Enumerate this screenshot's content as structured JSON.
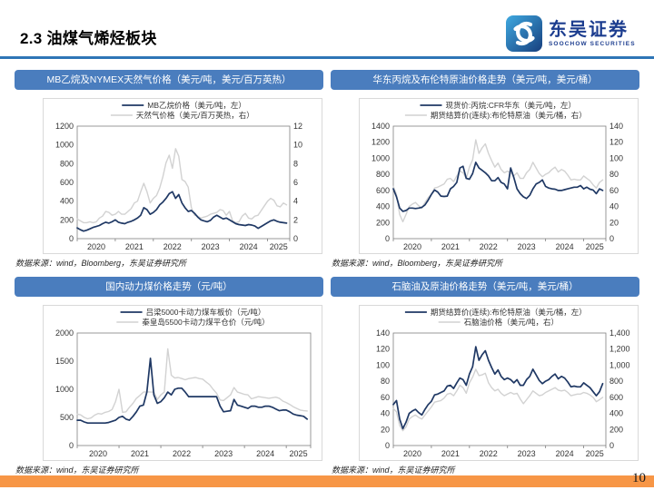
{
  "page": {
    "title": "2.3 油煤气烯烃板块",
    "page_number": "10",
    "logo": {
      "cn": "东吴证券",
      "en": "SOOCHOW SECURITIES"
    }
  },
  "colors": {
    "header_bar": "#4A7DBE",
    "title_rule": "#2E75B6",
    "footer_bar": "#F79646",
    "navy_line": "#1F3864",
    "gray_line": "#D2D2D2",
    "logo_navy": "#1C3D8F"
  },
  "panels": [
    {
      "header": "MB乙烷及NYMEX天然气价格（美元/吨，美元/百万英热）",
      "source": "数据来源：wind，Bloomberg，东吴证券研究所"
    },
    {
      "header": "华东丙烷及布伦特原油价格走势（美元/吨，美元/桶）",
      "source": "数据来源：wind，Bloomberg，东吴证券研究所"
    },
    {
      "header": "国内动力煤价格走势（元/吨）",
      "source": "数据来源：wind，东吴证券研究所"
    },
    {
      "header": "石脑油及原油价格走势（美元/吨，美元/桶）",
      "source": "数据来源：wind，东吴证券研究所"
    }
  ],
  "chart_data": [
    {
      "type": "line",
      "title": "MB乙烷及NYMEX天然气价格（美元/吨，美元/百万英热）",
      "x_start_year": 2020,
      "x_resolution": "monthly",
      "x_tick_labels": [
        "2020",
        "2021",
        "2022",
        "2023",
        "2024",
        "2025"
      ],
      "legend_position": "top-center",
      "grid": false,
      "axes": {
        "left": {
          "min": 0,
          "max": 1200,
          "step": 200,
          "comma": false
        },
        "right": {
          "min": 0,
          "max": 12,
          "step": 2,
          "comma": false
        }
      },
      "series": [
        {
          "name": "MB乙烷价格（美元/吨，左）",
          "axis": "left",
          "color": "#1F3864",
          "width": 1.7,
          "values": [
            115,
            95,
            80,
            90,
            105,
            120,
            130,
            140,
            160,
            175,
            165,
            180,
            200,
            175,
            165,
            160,
            175,
            185,
            200,
            220,
            250,
            330,
            310,
            260,
            280,
            310,
            360,
            390,
            430,
            480,
            500,
            430,
            470,
            380,
            330,
            290,
            300,
            270,
            230,
            200,
            190,
            180,
            195,
            230,
            250,
            230,
            210,
            220,
            200,
            180,
            160,
            150,
            145,
            140,
            150,
            145,
            135,
            110,
            130,
            150,
            170,
            190,
            200,
            185,
            175,
            170,
            165
          ]
        },
        {
          "name": "天然气价格（美元/百万英热，右）",
          "axis": "right",
          "color": "#D2D2D2",
          "width": 1.4,
          "values": [
            2.1,
            1.9,
            1.7,
            1.7,
            1.8,
            1.7,
            1.8,
            2.2,
            2.4,
            2.9,
            2.8,
            2.5,
            2.6,
            2.9,
            2.6,
            2.6,
            2.9,
            3.2,
            3.8,
            4.0,
            5.0,
            5.9,
            5.0,
            3.8,
            4.3,
            4.6,
            5.4,
            6.6,
            8.1,
            8.9,
            7.5,
            9.6,
            8.8,
            6.3,
            6.1,
            5.5,
            3.3,
            2.5,
            2.4,
            2.2,
            2.3,
            2.4,
            2.6,
            2.7,
            2.8,
            3.1,
            3.0,
            2.5,
            2.9,
            1.9,
            1.7,
            1.8,
            2.4,
            2.7,
            2.2,
            2.1,
            2.4,
            2.5,
            3.0,
            3.5,
            4.0,
            4.3,
            4.1,
            3.5,
            3.4,
            3.8,
            3.6
          ]
        }
      ]
    },
    {
      "type": "line",
      "title": "华东丙烷及布伦特原油价格走势（美元/吨，美元/桶）",
      "x_start_year": 2020,
      "x_resolution": "monthly",
      "x_tick_labels": [
        "2020",
        "2021",
        "2022",
        "2023",
        "2024",
        "2025"
      ],
      "legend_position": "top-center",
      "grid": false,
      "axes": {
        "left": {
          "min": 0,
          "max": 1400,
          "step": 200,
          "comma": false
        },
        "right": {
          "min": 0,
          "max": 140,
          "step": 20,
          "comma": false
        }
      },
      "series": [
        {
          "name": "现货价:丙烷:CFR华东（美元/吨，左）",
          "axis": "left",
          "color": "#1F3864",
          "width": 1.7,
          "values": [
            620,
            520,
            380,
            340,
            350,
            380,
            380,
            375,
            380,
            390,
            420,
            480,
            550,
            605,
            580,
            530,
            525,
            530,
            620,
            650,
            700,
            880,
            900,
            750,
            740,
            810,
            950,
            880,
            850,
            820,
            780,
            720,
            720,
            760,
            700,
            680,
            620,
            880,
            760,
            620,
            560,
            520,
            500,
            540,
            620,
            680,
            700,
            730,
            650,
            630,
            620,
            615,
            600,
            600,
            610,
            620,
            630,
            640,
            640,
            660,
            620,
            640,
            615,
            605,
            560,
            620,
            600
          ]
        },
        {
          "name": "期货结算价(连续):布伦特原油（美元/桶，右）",
          "axis": "right",
          "color": "#D2D2D2",
          "width": 1.4,
          "values": [
            65,
            55,
            30,
            21,
            30,
            40,
            43,
            45,
            41,
            38,
            45,
            51,
            55,
            63,
            64,
            66,
            68,
            74,
            75,
            71,
            78,
            84,
            82,
            75,
            89,
            98,
            123,
            106,
            113,
            118,
            106,
            97,
            89,
            94,
            86,
            82,
            84,
            82,
            78,
            82,
            75,
            75,
            82,
            86,
            95,
            88,
            81,
            77,
            80,
            82,
            86,
            89,
            83,
            86,
            84,
            79,
            73,
            74,
            73,
            73,
            78,
            75,
            72,
            67,
            63,
            70,
            73
          ]
        }
      ]
    },
    {
      "type": "line",
      "title": "国内动力煤价格走势（元/吨）",
      "x_start_year": 2020,
      "x_resolution": "monthly",
      "x_tick_labels": [
        "2020",
        "2021",
        "2022",
        "2023",
        "2024",
        "2025"
      ],
      "legend_position": "top-center",
      "grid": false,
      "axes": {
        "left": {
          "min": 0,
          "max": 2000,
          "step": 500,
          "comma": false
        },
        "right": null
      },
      "series": [
        {
          "name": "吕梁5000卡动力煤车板价（元/吨）",
          "axis": "left",
          "color": "#1F3864",
          "width": 1.7,
          "values": [
            450,
            450,
            420,
            400,
            400,
            400,
            400,
            400,
            400,
            410,
            430,
            450,
            500,
            520,
            470,
            450,
            520,
            600,
            700,
            720,
            950,
            1550,
            900,
            750,
            780,
            850,
            950,
            900,
            1000,
            1020,
            1020,
            950,
            870,
            870,
            870,
            870,
            870,
            870,
            870,
            870,
            870,
            700,
            600,
            610,
            620,
            820,
            720,
            700,
            680,
            660,
            700,
            700,
            680,
            680,
            700,
            700,
            680,
            650,
            620,
            630,
            630,
            600,
            560,
            540,
            530,
            520,
            470
          ]
        },
        {
          "name": "秦皇岛5500卡动力煤平仓价（元/吨）",
          "axis": "left",
          "color": "#D2D2D2",
          "width": 1.4,
          "values": [
            560,
            545,
            500,
            475,
            490,
            540,
            570,
            560,
            590,
            605,
            640,
            780,
            1000,
            590,
            600,
            680,
            750,
            840,
            890,
            950,
            955,
            950,
            950,
            820,
            900,
            950,
            1720,
            1250,
            1200,
            1210,
            1190,
            1170,
            1190,
            1200,
            1210,
            1190,
            1180,
            1130,
            1080,
            1000,
            930,
            810,
            800,
            850,
            900,
            1030,
            950,
            930,
            910,
            900,
            830,
            850,
            870,
            860,
            850,
            840,
            850,
            860,
            840,
            790,
            765,
            730,
            690,
            660,
            630,
            620,
            615
          ]
        }
      ]
    },
    {
      "type": "line",
      "title": "石脑油及原油价格走势（美元/吨，美元/桶）",
      "x_start_year": 2020,
      "x_resolution": "monthly",
      "x_tick_labels": [
        "2020",
        "2021",
        "2022",
        "2023",
        "2024",
        "2025"
      ],
      "legend_position": "top-center",
      "grid": false,
      "axes": {
        "left": {
          "min": 0,
          "max": 140,
          "step": 20,
          "comma": false
        },
        "right": {
          "min": 0,
          "max": 1400,
          "step": 200,
          "comma": true
        }
      },
      "series": [
        {
          "name": "期货结算价(连续):布伦特原油（美元/桶，左）",
          "axis": "left",
          "color": "#1F3864",
          "width": 1.7,
          "values": [
            51,
            56,
            33,
            21,
            29,
            40,
            43,
            45,
            41,
            38,
            45,
            51,
            55,
            63,
            64,
            66,
            68,
            74,
            75,
            71,
            78,
            84,
            82,
            75,
            89,
            98,
            123,
            106,
            113,
            118,
            106,
            97,
            89,
            94,
            86,
            82,
            84,
            82,
            78,
            82,
            75,
            75,
            82,
            86,
            95,
            88,
            81,
            77,
            80,
            82,
            86,
            89,
            83,
            86,
            84,
            79,
            73,
            74,
            73,
            73,
            78,
            75,
            72,
            67,
            62,
            67,
            77
          ]
        },
        {
          "name": "石脑油价格（美元/吨，右）",
          "axis": "right",
          "color": "#D2D2D2",
          "width": 1.4,
          "values": [
            460,
            420,
            250,
            185,
            230,
            330,
            360,
            380,
            350,
            330,
            380,
            430,
            480,
            540,
            550,
            560,
            590,
            640,
            650,
            620,
            680,
            750,
            720,
            650,
            780,
            850,
            950,
            870,
            880,
            900,
            780,
            720,
            680,
            700,
            650,
            620,
            640,
            660,
            640,
            650,
            580,
            520,
            570,
            620,
            680,
            650,
            620,
            630,
            660,
            680,
            700,
            720,
            690,
            680,
            690,
            660,
            620,
            630,
            640,
            640,
            660,
            650,
            630,
            600,
            545,
            570,
            600
          ]
        }
      ]
    }
  ]
}
